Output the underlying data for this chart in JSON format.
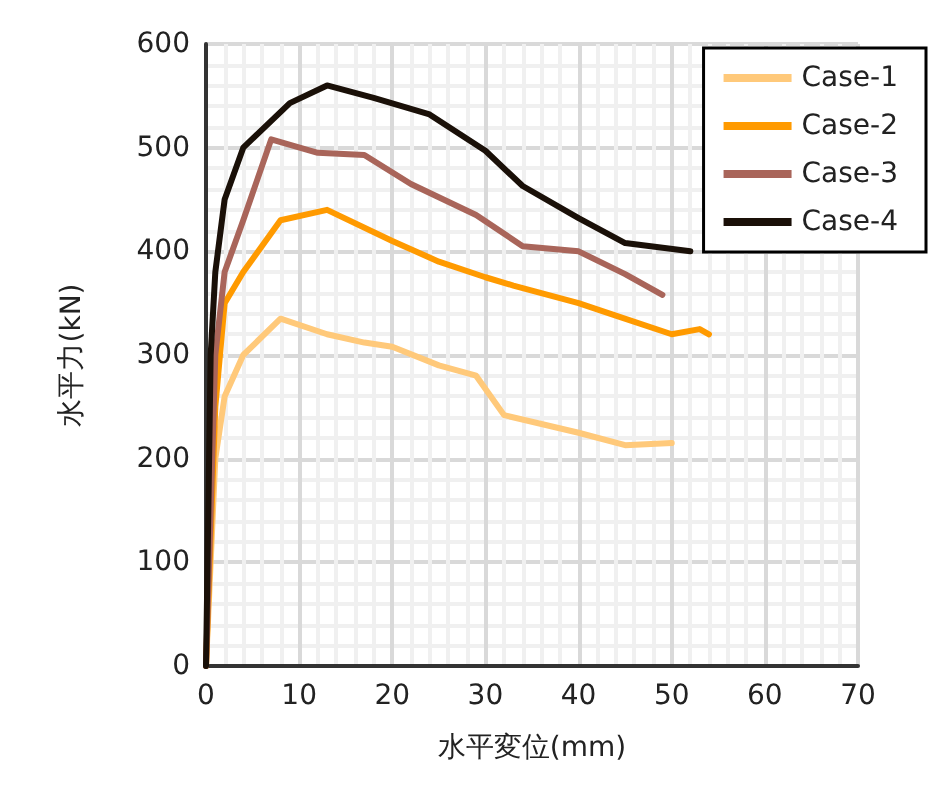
{
  "chart_data": {
    "type": "line",
    "xlabel": "水平変位(mm)",
    "ylabel": "水平力(kN)",
    "xlim": [
      0,
      70
    ],
    "xticks": [
      0,
      10,
      20,
      30,
      40,
      50,
      60,
      70
    ],
    "ylim": [
      0,
      600
    ],
    "yticks": [
      0,
      100,
      200,
      300,
      400,
      500,
      600
    ],
    "grid": true,
    "legend": "top right",
    "marker": "none",
    "line_style": "solid",
    "series": [
      {
        "name": "Case-1",
        "color": "#ffc97a",
        "x": [
          0,
          1,
          2,
          4,
          8,
          13,
          17,
          20,
          25,
          29,
          32,
          40,
          45,
          50
        ],
        "values": [
          0,
          200,
          260,
          300,
          335,
          320,
          312,
          308,
          290,
          280,
          242,
          225,
          213,
          215
        ]
      },
      {
        "name": "Case-2",
        "color": "#ff9a00",
        "x": [
          0,
          1,
          2,
          4,
          8,
          13,
          20,
          25,
          30,
          33,
          40,
          44,
          50,
          53,
          54
        ],
        "values": [
          0,
          250,
          350,
          380,
          430,
          440,
          410,
          390,
          375,
          367,
          350,
          338,
          320,
          325,
          320
        ]
      },
      {
        "name": "Case-3",
        "color": "#a9655a",
        "x": [
          0,
          1,
          2,
          4,
          7,
          12,
          17,
          22,
          29,
          34,
          40,
          45,
          49
        ],
        "values": [
          0,
          300,
          380,
          430,
          508,
          495,
          493,
          465,
          435,
          405,
          400,
          378,
          358
        ]
      },
      {
        "name": "Case-4",
        "color": "#1a1008",
        "x": [
          0,
          0.5,
          1,
          2,
          4,
          9,
          13,
          18,
          24,
          30,
          34,
          40,
          45,
          52
        ],
        "values": [
          0,
          300,
          380,
          450,
          500,
          543,
          560,
          548,
          532,
          497,
          463,
          432,
          408,
          400
        ]
      }
    ]
  }
}
